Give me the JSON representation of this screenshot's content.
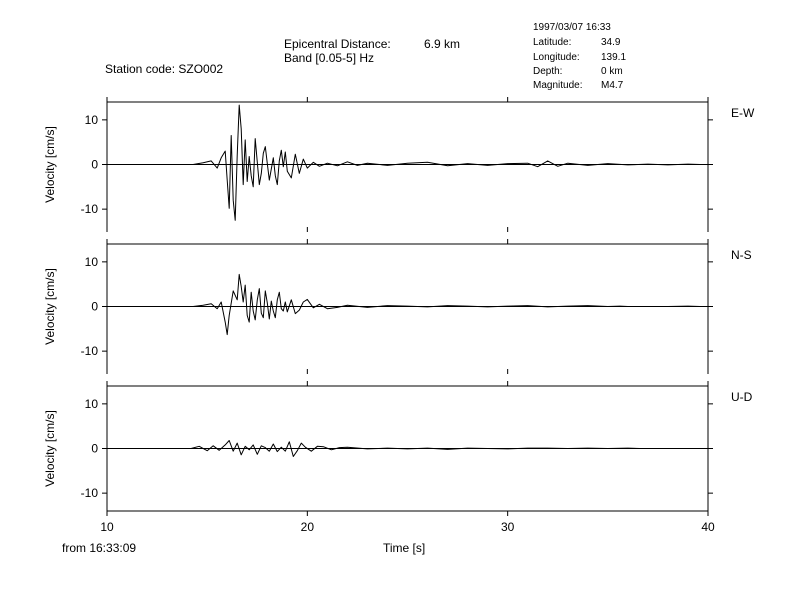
{
  "header": {
    "station_label": "Station code: SZO002",
    "epicentral_label": "Epicentral Distance:",
    "epicentral_value": "6.9 km",
    "band_label": "Band [0.05-5] Hz"
  },
  "event_info": {
    "datetime": "1997/03/07 16:33",
    "rows": [
      {
        "label": "Latitude:",
        "value": "34.9"
      },
      {
        "label": "Longitude:",
        "value": "139.1"
      },
      {
        "label": "Depth:",
        "value": "0 km"
      },
      {
        "label": "Magnitude:",
        "value": "M4.7"
      }
    ]
  },
  "footer": {
    "start_time": "from 16:33:09"
  },
  "colors": {
    "trace": "#000000",
    "background": "#ffffff"
  },
  "chart_data": {
    "type": "line",
    "xlabel": "Time [s]",
    "xlim": [
      10,
      40
    ],
    "x_ticks": [
      "10",
      "20",
      "30",
      "40"
    ],
    "panels": [
      {
        "name": "E-W",
        "ylabel": "Velocity [cm/s]",
        "ylim": [
          -14,
          14
        ],
        "y_ticks": [
          "10",
          "0",
          "-10"
        ],
        "x": [
          14.3,
          14.8,
          15.2,
          15.5,
          15.7,
          15.9,
          16.0,
          16.1,
          16.2,
          16.3,
          16.4,
          16.5,
          16.6,
          16.7,
          16.8,
          16.9,
          17.0,
          17.1,
          17.2,
          17.3,
          17.4,
          17.5,
          17.6,
          17.7,
          17.8,
          17.9,
          18.0,
          18.1,
          18.2,
          18.3,
          18.4,
          18.5,
          18.6,
          18.7,
          18.8,
          18.9,
          19.0,
          19.2,
          19.4,
          19.6,
          19.8,
          20.0,
          20.3,
          20.6,
          21.0,
          21.5,
          22.0,
          22.5,
          23.0,
          24.0,
          25.0,
          26.0,
          27.0,
          28.0,
          29.0,
          30.0,
          31.0,
          31.5,
          32.0,
          32.5,
          33.0,
          34.0,
          35.0,
          36.0,
          37.0,
          38.0,
          39.0,
          39.6
        ],
        "y": [
          0,
          0.4,
          0.8,
          -0.8,
          1.5,
          3.0,
          -3.5,
          -9.8,
          6.5,
          -8.0,
          -12.5,
          2.0,
          13.3,
          8.0,
          -4.5,
          5.5,
          -3.8,
          1.8,
          -2.5,
          -5.0,
          5.8,
          0.5,
          -4.5,
          -2.0,
          2.5,
          4.0,
          0.2,
          -3.5,
          -1.0,
          1.5,
          -2.5,
          -4.5,
          0.8,
          3.2,
          -0.5,
          2.8,
          -1.5,
          -3.0,
          2.3,
          -2.0,
          1.2,
          -0.8,
          0.5,
          -0.4,
          0.3,
          -0.3,
          0.6,
          -0.2,
          0.3,
          -0.2,
          0.3,
          0.5,
          -0.3,
          0.2,
          -0.2,
          0.2,
          0.3,
          -0.5,
          0.8,
          -0.4,
          0.3,
          -0.2,
          0.2,
          -0.1,
          0.1,
          -0.1,
          0.1,
          0
        ]
      },
      {
        "name": "N-S",
        "ylabel": "Velocity [cm/s]",
        "ylim": [
          -14,
          14
        ],
        "y_ticks": [
          "10",
          "0",
          "-10"
        ],
        "x": [
          14.3,
          14.8,
          15.2,
          15.5,
          15.7,
          15.9,
          16.0,
          16.1,
          16.3,
          16.5,
          16.6,
          16.7,
          16.8,
          16.9,
          17.0,
          17.1,
          17.2,
          17.3,
          17.4,
          17.5,
          17.6,
          17.7,
          17.8,
          17.9,
          18.0,
          18.1,
          18.2,
          18.3,
          18.4,
          18.5,
          18.6,
          18.7,
          18.8,
          18.9,
          19.0,
          19.2,
          19.4,
          19.6,
          19.8,
          20.0,
          20.3,
          20.6,
          21.0,
          21.5,
          22.0,
          23.0,
          24.0,
          25.0,
          26.0,
          27.0,
          28.0,
          29.0,
          30.0,
          31.0,
          32.0,
          33.0,
          34.0,
          35.0,
          35.6,
          36.0,
          37.0,
          38.0,
          39.0,
          39.6
        ],
        "y": [
          0,
          0.3,
          0.6,
          -0.5,
          1.0,
          -3.5,
          -6.3,
          -2.0,
          3.5,
          1.5,
          7.2,
          4.5,
          1.0,
          4.8,
          -2.0,
          -3.5,
          3.2,
          -1.0,
          -3.0,
          1.5,
          4.0,
          -1.5,
          -2.5,
          3.5,
          0.8,
          -2.8,
          1.2,
          -1.0,
          -2.5,
          1.5,
          3.2,
          -0.5,
          -1.0,
          1.0,
          -1.2,
          1.5,
          -1.6,
          -0.8,
          1.0,
          1.6,
          -0.3,
          0.5,
          -0.5,
          -0.2,
          0.3,
          -0.2,
          0.2,
          0.1,
          -0.1,
          0.2,
          0.1,
          -0.1,
          0.1,
          0.2,
          -0.1,
          0.1,
          0.2,
          0.0,
          0.1,
          0,
          0,
          0,
          0.1,
          0
        ]
      },
      {
        "name": "U-D",
        "ylabel": "Velocity [cm/s]",
        "ylim": [
          -14,
          14
        ],
        "y_ticks": [
          "10",
          "0",
          "-10"
        ],
        "x": [
          14.2,
          14.6,
          15.0,
          15.3,
          15.6,
          15.9,
          16.1,
          16.3,
          16.5,
          16.7,
          16.9,
          17.1,
          17.3,
          17.5,
          17.7,
          17.9,
          18.1,
          18.3,
          18.5,
          18.7,
          18.9,
          19.1,
          19.3,
          19.5,
          19.7,
          19.9,
          20.2,
          20.5,
          20.8,
          21.2,
          21.6,
          22.0,
          23.0,
          24.0,
          25.0,
          26.0,
          27.0,
          28.0,
          29.0,
          30.0,
          31.0,
          32.0,
          33.0,
          34.0,
          35.0,
          36.0,
          36.6
        ],
        "y": [
          0,
          0.5,
          -0.5,
          0.6,
          -0.4,
          0.8,
          1.8,
          -0.6,
          1.2,
          -1.4,
          0.5,
          -0.3,
          0.8,
          -1.3,
          0.6,
          0.2,
          -0.6,
          1.0,
          -0.7,
          0.3,
          -0.6,
          1.5,
          -1.8,
          -0.5,
          1.2,
          0.3,
          -0.6,
          0.5,
          0.4,
          -0.3,
          0.2,
          0.3,
          -0.1,
          0.1,
          -0.1,
          0.1,
          -0.2,
          0.1,
          0.0,
          -0.1,
          0.1,
          0.1,
          0.0,
          0.1,
          0.0,
          0.1,
          0
        ]
      }
    ]
  }
}
